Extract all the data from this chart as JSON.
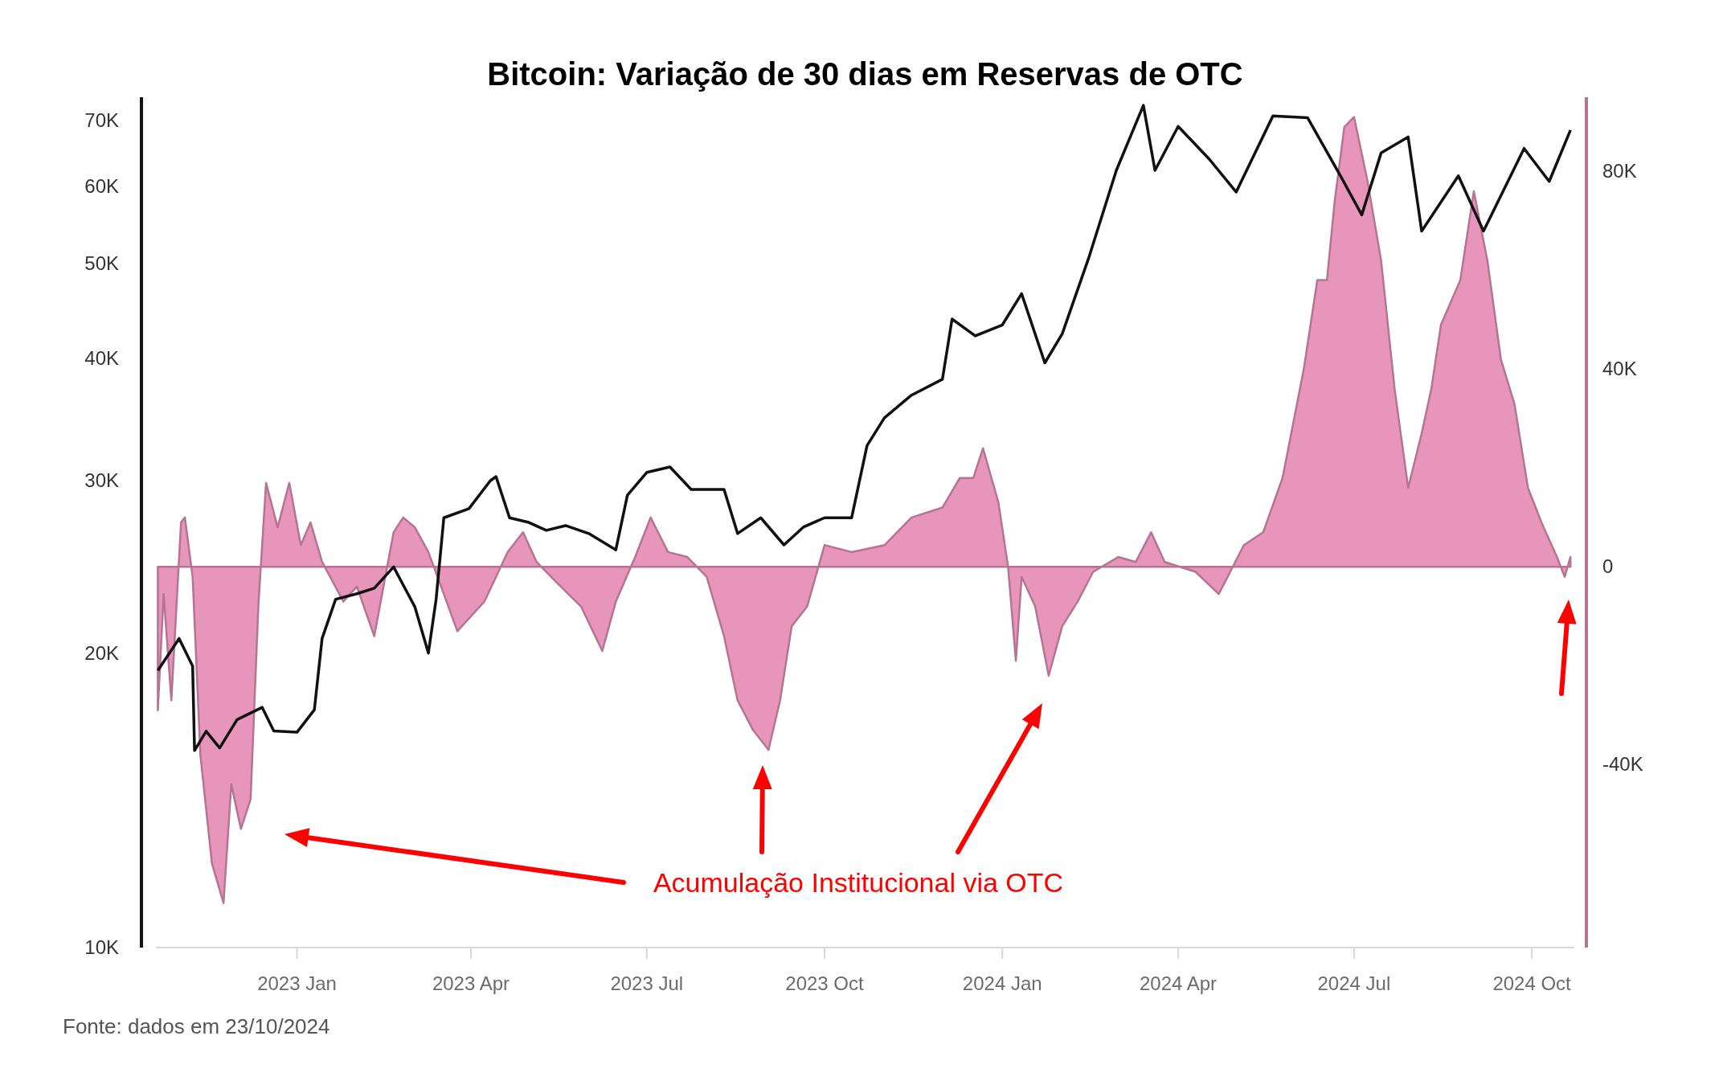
{
  "chart_data": {
    "type": "line",
    "title": "Bitcoin: Variação de 30 dias em Reservas de OTC",
    "annotations": [
      "Acumulação Institucional via OTC",
      "Fonte: dados em 23/10/2024"
    ],
    "xlim": [
      "2022-10-20",
      "2024-10-23"
    ],
    "xticks": [
      {
        "value": "2023-01-01",
        "label": "2023 Jan"
      },
      {
        "value": "2023-04-01",
        "label": "2023 Apr"
      },
      {
        "value": "2023-07-01",
        "label": "2023 Jul"
      },
      {
        "value": "2023-10-01",
        "label": "2023 Oct"
      },
      {
        "value": "2024-01-01",
        "label": "2024 Jan"
      },
      {
        "value": "2024-04-01",
        "label": "2024 Apr"
      },
      {
        "value": "2024-07-01",
        "label": "2024 Jul"
      },
      {
        "value": "2024-10-01",
        "label": "2024 Oct"
      }
    ],
    "ylim": [
      10000,
      74000
    ],
    "yticks": [
      {
        "value": 10000,
        "label": "10K"
      },
      {
        "value": 20000,
        "label": "20K"
      },
      {
        "value": 30000,
        "label": "30K"
      },
      {
        "value": 40000,
        "label": "40K"
      },
      {
        "value": 50000,
        "label": "50K"
      },
      {
        "value": 60000,
        "label": "60K"
      },
      {
        "value": 70000,
        "label": "70K"
      }
    ],
    "y2lim": [
      -77000,
      95000
    ],
    "y2ticks": [
      {
        "value": -40000,
        "label": "-40K"
      },
      0,
      {
        "value": 40000,
        "label": "40K"
      },
      {
        "value": 80000,
        "label": "80K"
      }
    ],
    "log": "y",
    "grid": false,
    "series": [
      {
        "type": "area",
        "axis": "y2",
        "color": "#e895bb",
        "x": [
          "2022-10-21",
          "2022-10-24",
          "2022-10-28",
          "2022-11-02",
          "2022-11-04",
          "2022-11-08",
          "2022-11-12",
          "2022-11-18",
          "2022-11-24",
          "2022-11-28",
          "2022-12-03",
          "2022-12-08",
          "2022-12-12",
          "2022-12-16",
          "2022-12-22",
          "2022-12-28",
          "2023-01-03",
          "2023-01-08",
          "2023-01-14",
          "2023-01-25",
          "2023-02-01",
          "2023-02-10",
          "2023-02-20",
          "2023-02-25",
          "2023-03-03",
          "2023-03-10",
          "2023-03-18",
          "2023-03-25",
          "2023-04-08",
          "2023-04-20",
          "2023-04-28",
          "2023-05-05",
          "2023-05-15",
          "2023-05-28",
          "2023-06-08",
          "2023-06-15",
          "2023-06-25",
          "2023-07-03",
          "2023-07-12",
          "2023-07-22",
          "2023-08-01",
          "2023-08-10",
          "2023-08-17",
          "2023-08-25",
          "2023-09-02",
          "2023-09-08",
          "2023-09-14",
          "2023-09-22",
          "2023-10-01",
          "2023-10-15",
          "2023-11-01",
          "2023-11-15",
          "2023-12-01",
          "2023-12-10",
          "2023-12-17",
          "2023-12-22",
          "2023-12-30",
          "2024-01-04",
          "2024-01-08",
          "2024-01-11",
          "2024-01-18",
          "2024-01-25",
          "2024-02-01",
          "2024-02-09",
          "2024-02-17",
          "2024-03-01",
          "2024-03-10",
          "2024-03-18",
          "2024-03-25",
          "2024-04-10",
          "2024-04-22",
          "2024-05-05",
          "2024-05-15",
          "2024-05-25",
          "2024-06-05",
          "2024-06-12",
          "2024-06-17",
          "2024-06-21",
          "2024-06-26",
          "2024-07-01",
          "2024-07-08",
          "2024-07-15",
          "2024-07-22",
          "2024-07-29",
          "2024-08-05",
          "2024-08-10",
          "2024-08-15",
          "2024-08-25",
          "2024-09-01",
          "2024-09-08",
          "2024-09-15",
          "2024-09-22",
          "2024-09-29",
          "2024-10-06",
          "2024-10-14",
          "2024-10-18",
          "2024-10-21"
        ],
        "values": [
          -29000,
          -5500,
          -27000,
          9000,
          10000,
          -2000,
          -38000,
          -60000,
          -68000,
          -44000,
          -53000,
          -47000,
          -8000,
          17000,
          8000,
          17000,
          4400,
          9000,
          1000,
          -7000,
          -4000,
          -14000,
          7000,
          10000,
          8000,
          3000,
          -5500,
          -13000,
          -7000,
          3000,
          7000,
          1000,
          -3000,
          -8000,
          -17000,
          -7000,
          2000,
          10000,
          3000,
          2000,
          -2000,
          -14000,
          -27000,
          -33000,
          -37000,
          -27000,
          -12000,
          -8000,
          4400,
          3000,
          4400,
          10000,
          12000,
          18000,
          18000,
          24000,
          13000,
          0,
          -19000,
          -2000,
          -8000,
          -22000,
          -12000,
          -7000,
          -1000,
          2000,
          1000,
          7000,
          1000,
          -1000,
          -5500,
          4400,
          7000,
          18000,
          40000,
          58000,
          58000,
          74000,
          89000,
          91000,
          78000,
          62000,
          36000,
          16000,
          27000,
          36000,
          49000,
          58000,
          76000,
          62000,
          42000,
          33000,
          16000,
          9000,
          2000,
          -2000,
          2000
        ]
      },
      {
        "axis": "y",
        "color": "#111111",
        "x": [
          "2022-10-21",
          "2022-11-01",
          "2022-11-08",
          "2022-11-09",
          "2022-11-15",
          "2022-11-22",
          "2022-12-01",
          "2022-12-14",
          "2022-12-20",
          "2023-01-01",
          "2023-01-10",
          "2023-01-14",
          "2023-01-21",
          "2023-02-01",
          "2023-02-10",
          "2023-02-20",
          "2023-03-03",
          "2023-03-10",
          "2023-03-14",
          "2023-03-18",
          "2023-03-31",
          "2023-04-11",
          "2023-04-14",
          "2023-04-21",
          "2023-05-01",
          "2023-05-10",
          "2023-05-20",
          "2023-06-01",
          "2023-06-15",
          "2023-06-21",
          "2023-07-01",
          "2023-07-13",
          "2023-07-24",
          "2023-08-10",
          "2023-08-17",
          "2023-08-29",
          "2023-09-10",
          "2023-09-20",
          "2023-10-01",
          "2023-10-15",
          "2023-10-23",
          "2023-11-01",
          "2023-11-15",
          "2023-12-01",
          "2023-12-06",
          "2023-12-18",
          "2024-01-01",
          "2024-01-11",
          "2024-01-23",
          "2024-02-01",
          "2024-02-15",
          "2024-02-29",
          "2024-03-14",
          "2024-03-20",
          "2024-04-01",
          "2024-04-17",
          "2024-05-01",
          "2024-05-20",
          "2024-06-07",
          "2024-06-24",
          "2024-07-05",
          "2024-07-15",
          "2024-07-29",
          "2024-08-05",
          "2024-08-24",
          "2024-09-06",
          "2024-09-27",
          "2024-10-10",
          "2024-10-21"
        ],
        "values": [
          19200,
          20700,
          19400,
          15900,
          16640,
          16000,
          17100,
          17600,
          16650,
          16600,
          17500,
          20700,
          22700,
          23000,
          23300,
          24500,
          22300,
          20000,
          22700,
          27500,
          28100,
          30000,
          30300,
          27500,
          27200,
          26700,
          27000,
          26500,
          25500,
          29000,
          30600,
          31000,
          29400,
          29400,
          26500,
          27500,
          25800,
          26900,
          27500,
          27500,
          32600,
          34800,
          36700,
          38100,
          43900,
          42200,
          43300,
          46600,
          39600,
          42400,
          50900,
          62300,
          72600,
          62300,
          69100,
          64000,
          59200,
          70800,
          70500,
          61500,
          56100,
          64900,
          67400,
          54000,
          61500,
          54000,
          65600,
          60700,
          68500
        ]
      }
    ]
  }
}
